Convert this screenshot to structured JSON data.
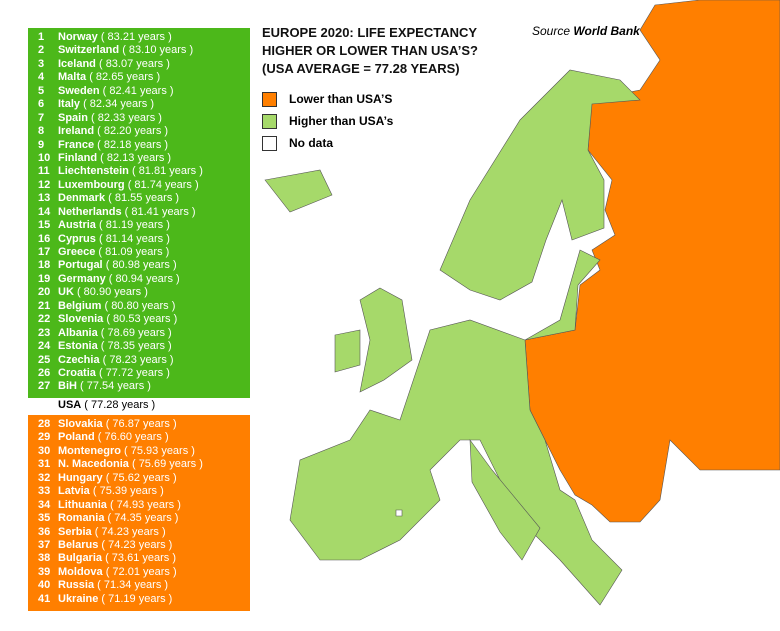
{
  "header": {
    "title_lines": [
      "EUROPE 2020: LIFE EXPECTANCY",
      "HIGHER OR LOWER THAN USA’S?",
      "(USA AVERAGE = 77.28 YEARS)"
    ],
    "source_label": "Source",
    "source_name": "World Bank"
  },
  "legend": [
    {
      "label": "Lower than USA’S",
      "color": "#ff7f00"
    },
    {
      "label": "Higher than USA’s",
      "color": "#a6d96a"
    },
    {
      "label": "No data",
      "color": "#ffffff"
    }
  ],
  "higher": {
    "color": "#4cb81a",
    "entries": [
      {
        "rank": "1",
        "country": "Norway",
        "years": "( 83.21 years )"
      },
      {
        "rank": "2",
        "country": "Switzerland",
        "years": "( 83.10 years )"
      },
      {
        "rank": "3",
        "country": "Iceland",
        "years": "( 83.07 years )"
      },
      {
        "rank": "4",
        "country": "Malta",
        "years": "( 82.65 years )"
      },
      {
        "rank": "5",
        "country": "Sweden",
        "years": "( 82.41 years )"
      },
      {
        "rank": "6",
        "country": "Italy",
        "years": "( 82.34 years )"
      },
      {
        "rank": "7",
        "country": "Spain",
        "years": "( 82.33 years )"
      },
      {
        "rank": "8",
        "country": "Ireland",
        "years": "( 82.20 years )"
      },
      {
        "rank": "9",
        "country": "France",
        "years": "( 82.18 years )"
      },
      {
        "rank": "10",
        "country": "Finland",
        "years": "( 82.13 years )"
      },
      {
        "rank": "11",
        "country": "Liechtenstein",
        "years": "( 81.81 years )"
      },
      {
        "rank": "12",
        "country": "Luxembourg",
        "years": "( 81.74 years )"
      },
      {
        "rank": "13",
        "country": "Denmark",
        "years": "( 81.55 years )"
      },
      {
        "rank": "14",
        "country": "Netherlands",
        "years": "( 81.41 years )"
      },
      {
        "rank": "15",
        "country": "Austria",
        "years": "( 81.19 years )"
      },
      {
        "rank": "16",
        "country": "Cyprus",
        "years": "( 81.14 years )"
      },
      {
        "rank": "17",
        "country": "Greece",
        "years": "( 81.09 years )"
      },
      {
        "rank": "18",
        "country": "Portugal",
        "years": "( 80.98 years )"
      },
      {
        "rank": "19",
        "country": "Germany",
        "years": "( 80.94 years )"
      },
      {
        "rank": "20",
        "country": "UK",
        "years": "( 80.90 years )"
      },
      {
        "rank": "21",
        "country": "Belgium",
        "years": "( 80.80 years )"
      },
      {
        "rank": "22",
        "country": "Slovenia",
        "years": "( 80.53 years )"
      },
      {
        "rank": "23",
        "country": "Albania",
        "years": "( 78.69 years )"
      },
      {
        "rank": "24",
        "country": "Estonia",
        "years": "( 78.35 years )"
      },
      {
        "rank": "25",
        "country": "Czechia",
        "years": "( 78.23 years )"
      },
      {
        "rank": "26",
        "country": "Croatia",
        "years": "( 77.72 years )"
      },
      {
        "rank": "27",
        "country": "BiH",
        "years": "( 77.54 years )"
      }
    ]
  },
  "usa": {
    "country": "USA",
    "years": "( 77.28 years )"
  },
  "lower": {
    "color": "#ff7f00",
    "entries": [
      {
        "rank": "28",
        "country": "Slovakia",
        "years": "( 76.87 years )"
      },
      {
        "rank": "29",
        "country": "Poland",
        "years": "( 76.60 years )"
      },
      {
        "rank": "30",
        "country": "Montenegro",
        "years": "( 75.93 years )"
      },
      {
        "rank": "31",
        "country": "N. Macedonia",
        "years": "( 75.69 years )"
      },
      {
        "rank": "32",
        "country": "Hungary",
        "years": "( 75.62 years )"
      },
      {
        "rank": "33",
        "country": "Latvia",
        "years": "( 75.39 years )"
      },
      {
        "rank": "34",
        "country": "Lithuania",
        "years": "( 74.93 years )"
      },
      {
        "rank": "35",
        "country": "Romania",
        "years": "( 74.35 years )"
      },
      {
        "rank": "36",
        "country": "Serbia",
        "years": "( 74.23 years )"
      },
      {
        "rank": "37",
        "country": "Belarus",
        "years": "( 74.23 years )"
      },
      {
        "rank": "38",
        "country": "Bulgaria",
        "years": "( 73.61 years )"
      },
      {
        "rank": "39",
        "country": "Moldova",
        "years": "( 72.01 years )"
      },
      {
        "rank": "40",
        "country": "Russia",
        "years": "( 71.34 years )"
      },
      {
        "rank": "41",
        "country": "Ukraine",
        "years": "( 71.19 years )"
      }
    ]
  }
}
